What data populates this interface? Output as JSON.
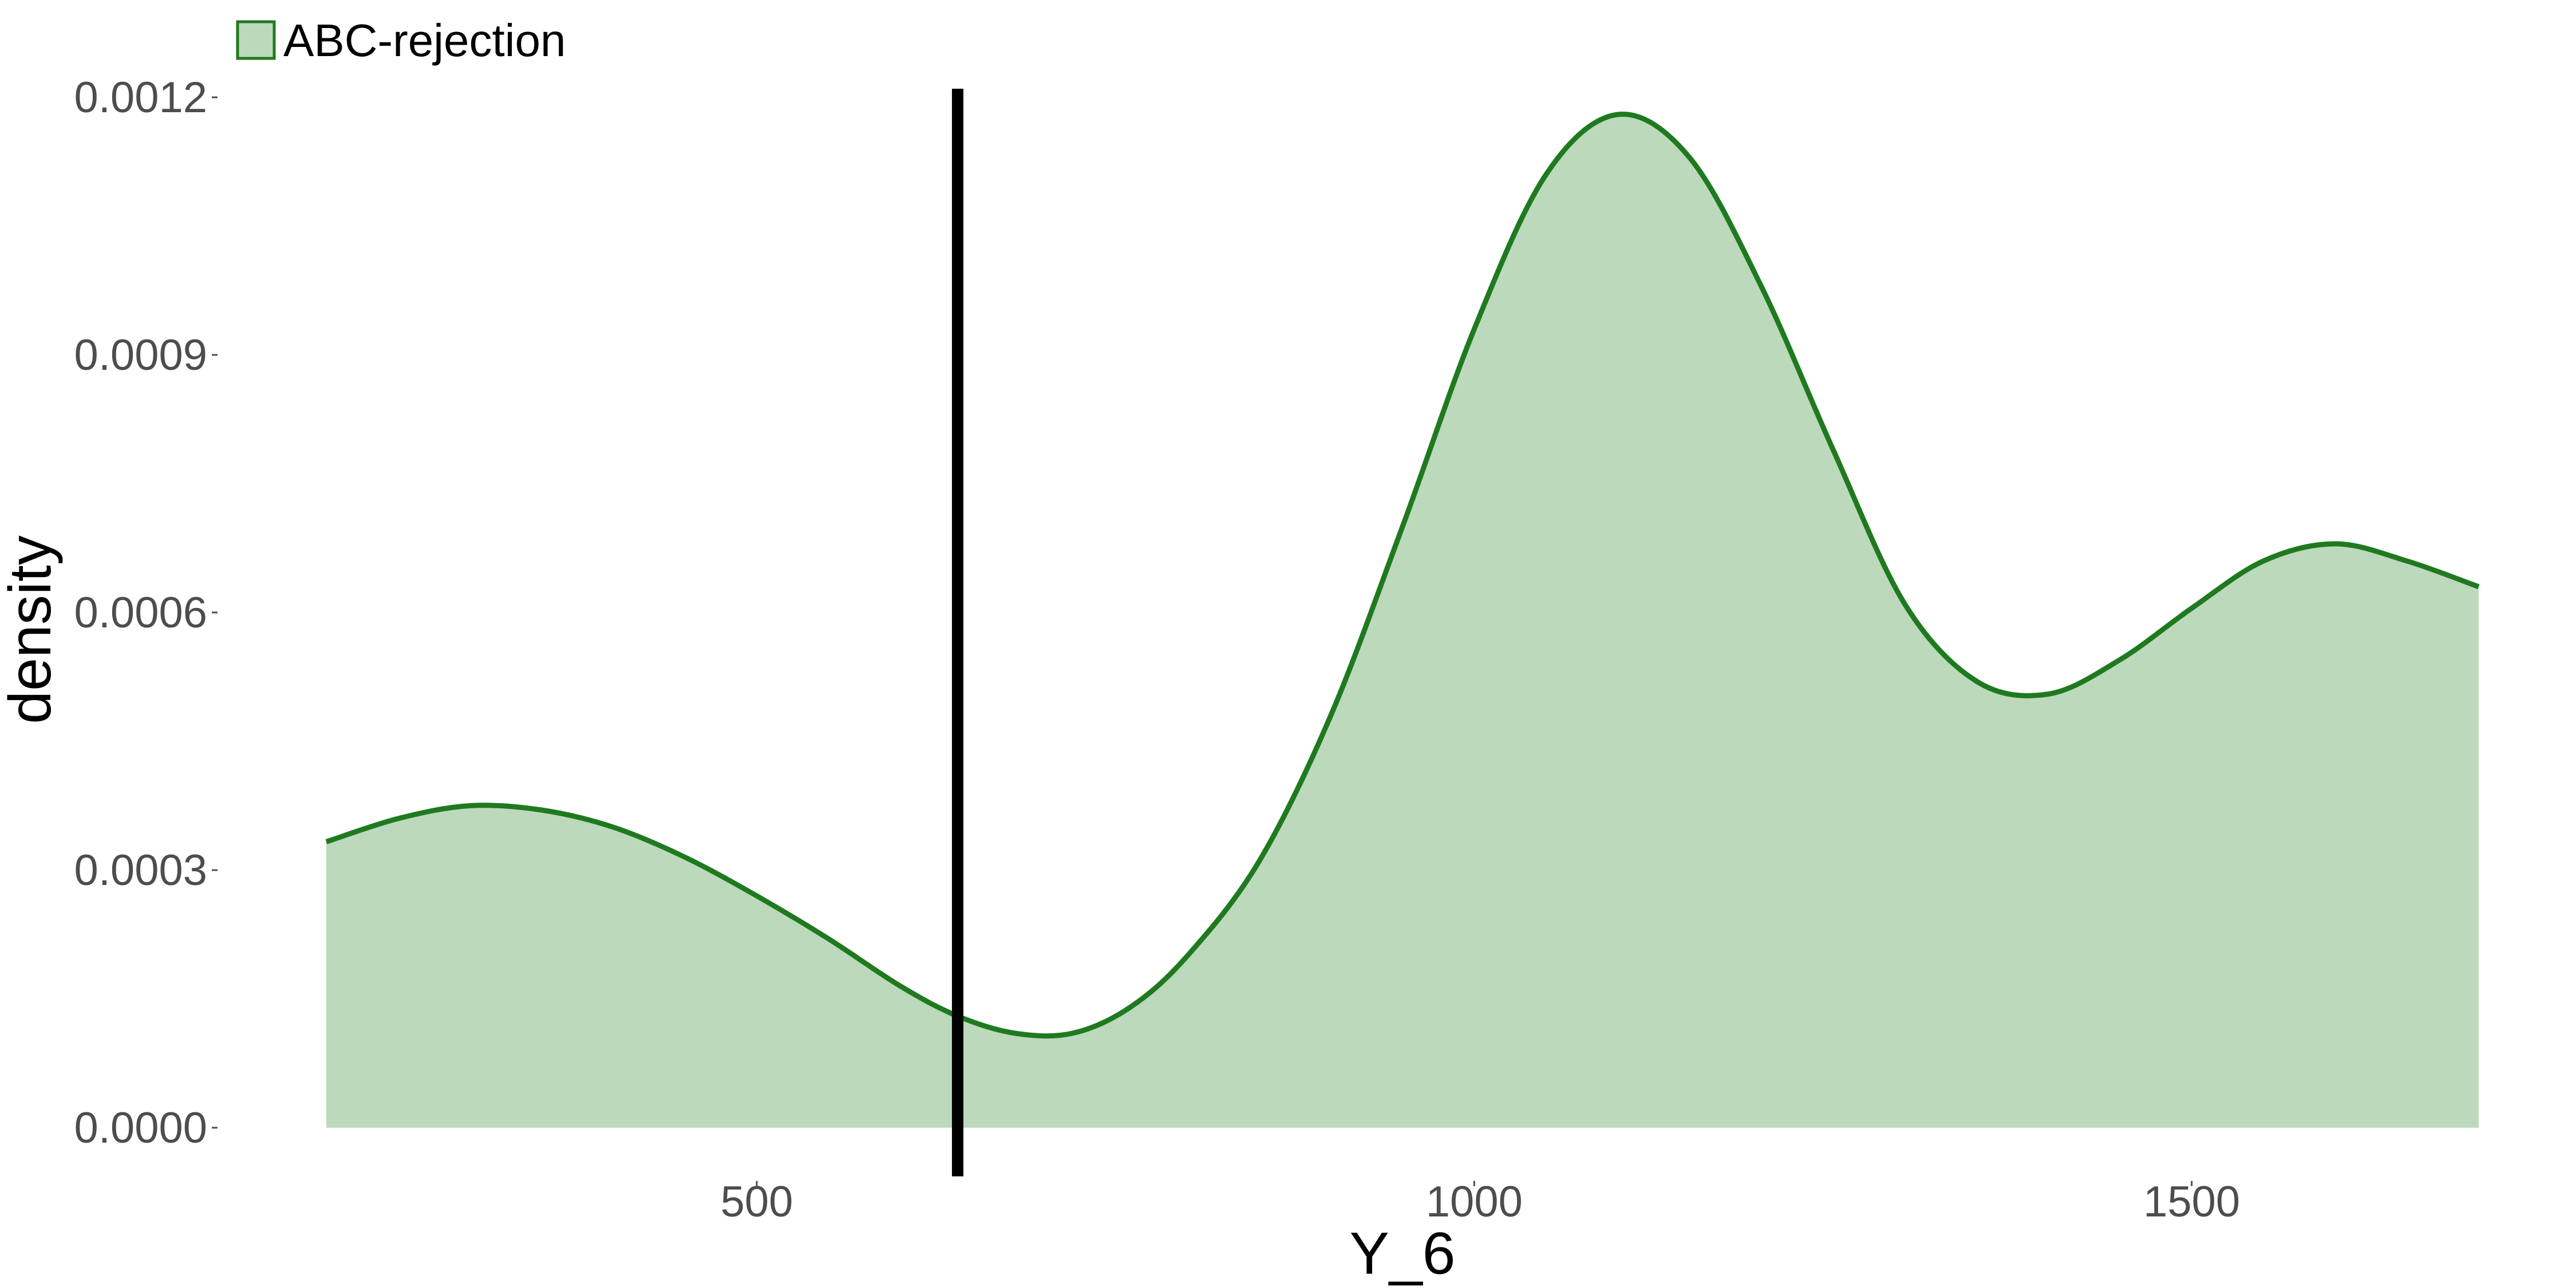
{
  "chart_data": {
    "type": "area",
    "title": "",
    "xlabel": "Y_6",
    "ylabel": "density",
    "xlim": [
      200,
      1700
    ],
    "ylim": [
      -6e-05,
      0.00122
    ],
    "x_ticks": [
      500,
      1000,
      1500
    ],
    "x_tick_labels": [
      "500",
      "1000",
      "1500"
    ],
    "y_ticks": [
      0,
      0.0003,
      0.0006,
      0.0009,
      0.0012
    ],
    "y_tick_labels": [
      "0.0000",
      "0.0003",
      "0.0006",
      "0.0009",
      "0.0012"
    ],
    "grid": false,
    "legend": {
      "position": "top-left",
      "entries": [
        "ABC-rejection"
      ]
    },
    "series": [
      {
        "name": "ABC-rejection",
        "color": "#1f7a1f",
        "fill": "#bcd9bc",
        "x": [
          200,
          250,
          300,
          350,
          400,
          450,
          500,
          550,
          600,
          640,
          680,
          720,
          760,
          800,
          850,
          900,
          950,
          1000,
          1050,
          1100,
          1150,
          1200,
          1250,
          1300,
          1350,
          1400,
          1450,
          1500,
          1550,
          1600,
          1650,
          1700
        ],
        "y": [
          0.000333,
          0.00036,
          0.000375,
          0.00037,
          0.00035,
          0.000315,
          0.00027,
          0.00022,
          0.000165,
          0.00013,
          0.00011,
          0.00011,
          0.00014,
          0.0002,
          0.00031,
          0.00048,
          0.0007,
          0.00093,
          0.00111,
          0.00118,
          0.00113,
          0.00098,
          0.00079,
          0.00061,
          0.00052,
          0.000505,
          0.000545,
          0.000605,
          0.00066,
          0.00068,
          0.00066,
          0.00063
        ]
      }
    ],
    "annotations": [
      {
        "type": "vline",
        "x": 640,
        "color": "#000000"
      }
    ]
  }
}
